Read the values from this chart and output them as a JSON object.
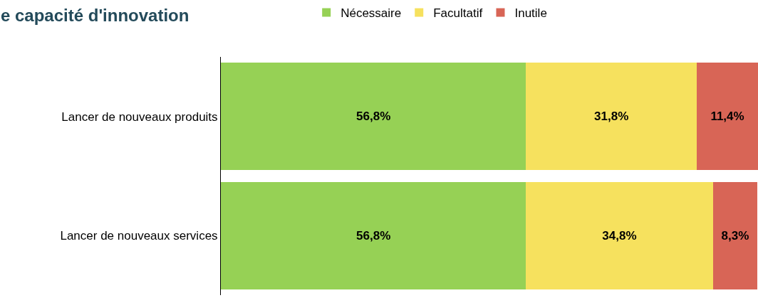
{
  "chart_data": {
    "type": "bar",
    "orientation": "horizontal",
    "stacked": true,
    "title": "e capacité d'innovation",
    "categories": [
      "Lancer de nouveaux produits",
      "Lancer de nouveaux services"
    ],
    "series": [
      {
        "name": "Nécessaire",
        "color": "#96d155",
        "values": [
          56.8,
          56.8
        ],
        "value_labels": [
          "56,8%",
          "56,8%"
        ]
      },
      {
        "name": "Facultatif",
        "color": "#f6e15e",
        "values": [
          31.8,
          34.8
        ],
        "value_labels": [
          "31,8%",
          "34,8%"
        ]
      },
      {
        "name": "Inutile",
        "color": "#d86556",
        "values": [
          11.4,
          8.3
        ],
        "value_labels": [
          "11,4%",
          "8,3%"
        ]
      }
    ],
    "xlim": [
      0,
      100
    ],
    "tick_labels": "y",
    "legend": "top"
  }
}
